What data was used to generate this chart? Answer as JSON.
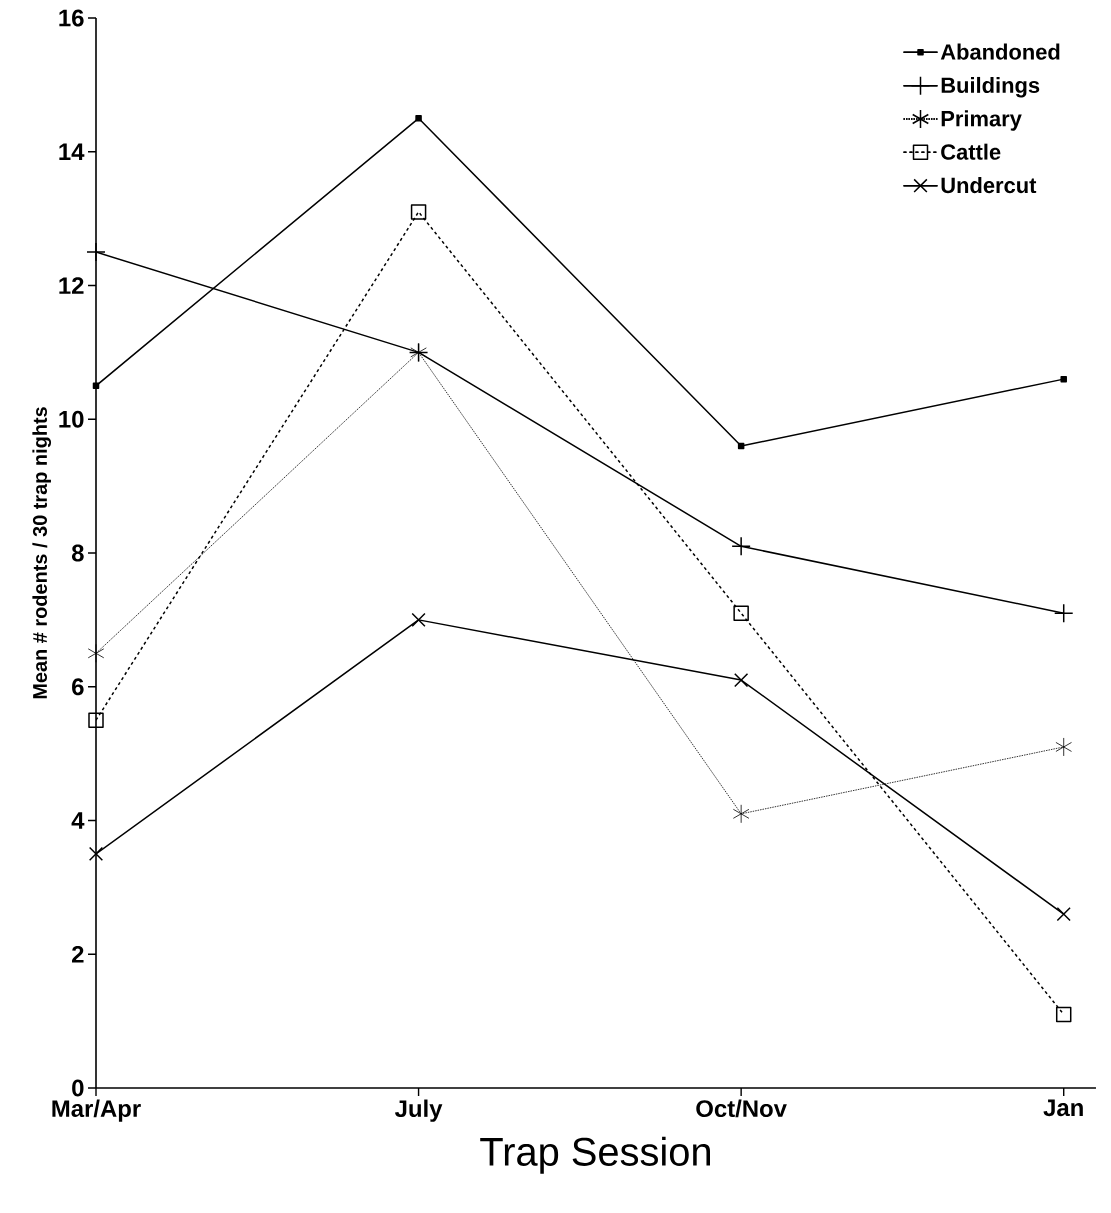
{
  "chart_data": {
    "type": "line",
    "xlabel": "Trap Session",
    "ylabel": "Mean # rodents / 30 trap nights",
    "categories": [
      "Mar/Apr",
      "July",
      "Oct/Nov",
      "Jan"
    ],
    "ylim": [
      0,
      16
    ],
    "yticks": [
      0,
      2,
      4,
      6,
      8,
      10,
      12,
      14,
      16
    ],
    "grid": false,
    "legend": "top right",
    "series": [
      {
        "name": "Abandoned",
        "color": "#000000",
        "marker": "square",
        "line_style": "solid",
        "values": [
          10.5,
          14.5,
          9.6,
          10.6
        ]
      },
      {
        "name": "Buildings",
        "color": "#000000",
        "marker": "plus",
        "line_style": "solid",
        "values": [
          12.5,
          11.0,
          8.1,
          7.1
        ]
      },
      {
        "name": "Primary",
        "color": "#000000",
        "marker": "cross",
        "line_style": "dotted",
        "values": [
          6.5,
          11.0,
          4.1,
          5.1
        ]
      },
      {
        "name": "Cattle",
        "color": "#000000",
        "marker": "square",
        "line_style": "dashed",
        "values": [
          5.5,
          13.1,
          7.1,
          1.1
        ]
      },
      {
        "name": "Undercut",
        "color": "#000000",
        "marker": "x",
        "line_style": "solid",
        "values": [
          3.5,
          7.0,
          6.1,
          2.6
        ]
      }
    ]
  }
}
